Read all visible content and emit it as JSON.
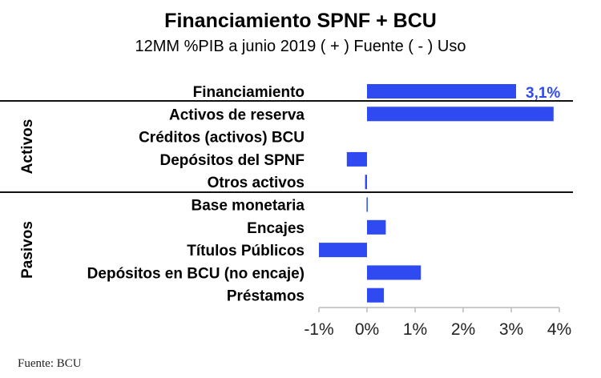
{
  "chart_data": {
    "type": "bar",
    "orientation": "horizontal",
    "title": "Financiamiento SPNF + BCU",
    "subtitle": "12MM %PIB a junio 2019 ( + ) Fuente ( - ) Uso",
    "source": "Fuente: BCU",
    "categories": [
      "Financiamiento",
      "Activos de reserva",
      "Créditos (activos) BCU",
      "Depósitos del SPNF",
      "Otros activos",
      "Base monetaria",
      "Encajes",
      "Títulos Públicos",
      "Depósitos en BCU (no encaje)",
      "Préstamos"
    ],
    "values": [
      3.1,
      3.88,
      0,
      -0.42,
      -0.04,
      -0.01,
      0.39,
      -1.0,
      1.12,
      0.35
    ],
    "groups": [
      {
        "name": "Activos",
        "categories": [
          "Activos de reserva",
          "Créditos (activos) BCU",
          "Depósitos del SPNF",
          "Otros activos"
        ]
      },
      {
        "name": "Pasivos",
        "categories": [
          "Base monetaria",
          "Encajes",
          "Títulos Públicos",
          "Depósitos en BCU (no encaje)",
          "Préstamos"
        ]
      }
    ],
    "data_labels": [
      {
        "category": "Financiamiento",
        "text": "3,1%"
      }
    ],
    "xlim": [
      -1,
      4
    ],
    "xticks": [
      -1,
      0,
      1,
      2,
      3,
      4
    ],
    "xtick_labels": [
      "-1%",
      "0%",
      "1%",
      "2%",
      "3%",
      "4%"
    ],
    "grid": false,
    "colors": {
      "bar": "#2e4af0",
      "label": "#2e4af0"
    }
  }
}
